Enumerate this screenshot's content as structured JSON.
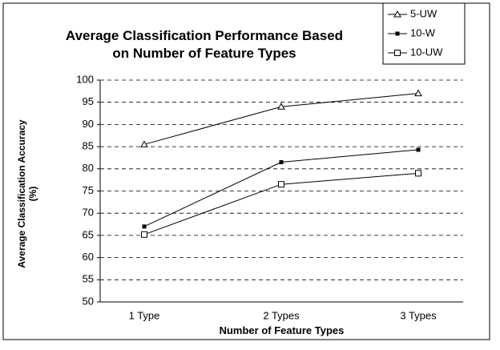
{
  "chart_data": {
    "type": "line",
    "title": "Average Classification Performance Based on Number of Feature Types",
    "x_label": "Number of Feature Types",
    "y_label": "Average Classification Accuracy (%)",
    "categories": [
      "1 Type",
      "2 Types",
      "3 Types"
    ],
    "series": [
      {
        "name": "5-UW",
        "color": "#000000",
        "marker": "triangle",
        "values": [
          85.5,
          94,
          97
        ]
      },
      {
        "name": "10-W",
        "color": "#000000",
        "marker": "filled-square",
        "values": [
          67,
          81.5,
          84.3
        ]
      },
      {
        "name": "10-UW",
        "color": "#000000",
        "marker": "open-square",
        "values": [
          65.2,
          76.5,
          79
        ]
      }
    ],
    "ylim": [
      50,
      100
    ],
    "yticks": [
      50,
      55,
      60,
      65,
      70,
      75,
      80,
      85,
      90,
      95,
      100
    ],
    "grid": true,
    "legend": "top-right"
  }
}
